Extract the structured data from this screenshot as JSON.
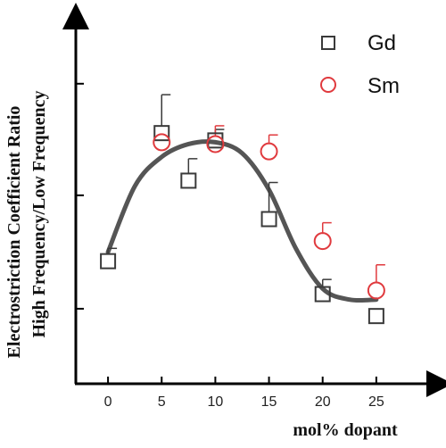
{
  "chart_data": {
    "type": "scatter",
    "title": "",
    "xlabel": "mol% dopant",
    "ylabel_lines": [
      "Electrostriction  Coefficient Ratio",
      "High Frequency/Low Frequency"
    ],
    "xlim": [
      -3,
      29
    ],
    "ylim": [
      0,
      1
    ],
    "x_ticks": [
      0,
      5,
      10,
      15,
      20,
      25
    ],
    "x_tick_labels": [
      "0",
      "5",
      "10",
      "15",
      "20",
      "25"
    ],
    "y_ticks": [
      0.205,
      0.515,
      0.82
    ],
    "y_tick_labels_shown": false,
    "grid": false,
    "legend_position": "top-right",
    "series": [
      {
        "name": "Gd",
        "marker": "square",
        "color": "#3a3a3a",
        "x": [
          0,
          5,
          7.5,
          10,
          15,
          20,
          25
        ],
        "y": [
          0.335,
          0.685,
          0.555,
          0.665,
          0.45,
          0.245,
          0.185
        ],
        "err_up": [
          0.035,
          0.105,
          0.06,
          0.03,
          0.1,
          0.04,
          0
        ],
        "err_down": [
          0,
          0,
          0,
          0,
          0,
          0,
          0
        ]
      },
      {
        "name": "Sm",
        "marker": "circle",
        "color": "#e03a3e",
        "x": [
          5,
          10,
          15,
          20,
          25
        ],
        "y": [
          0.66,
          0.655,
          0.635,
          0.39,
          0.255
        ],
        "err_up": [
          0,
          0.05,
          0.045,
          0.05,
          0.07
        ],
        "err_down": [
          0,
          0,
          0,
          0,
          0
        ]
      }
    ],
    "fit_curve": {
      "color": "#555555",
      "x": [
        0,
        2.5,
        5,
        7.5,
        10,
        12.5,
        15,
        17.5,
        20,
        22.5,
        25
      ],
      "y": [
        0.36,
        0.54,
        0.62,
        0.655,
        0.66,
        0.63,
        0.53,
        0.37,
        0.26,
        0.23,
        0.23
      ]
    }
  }
}
